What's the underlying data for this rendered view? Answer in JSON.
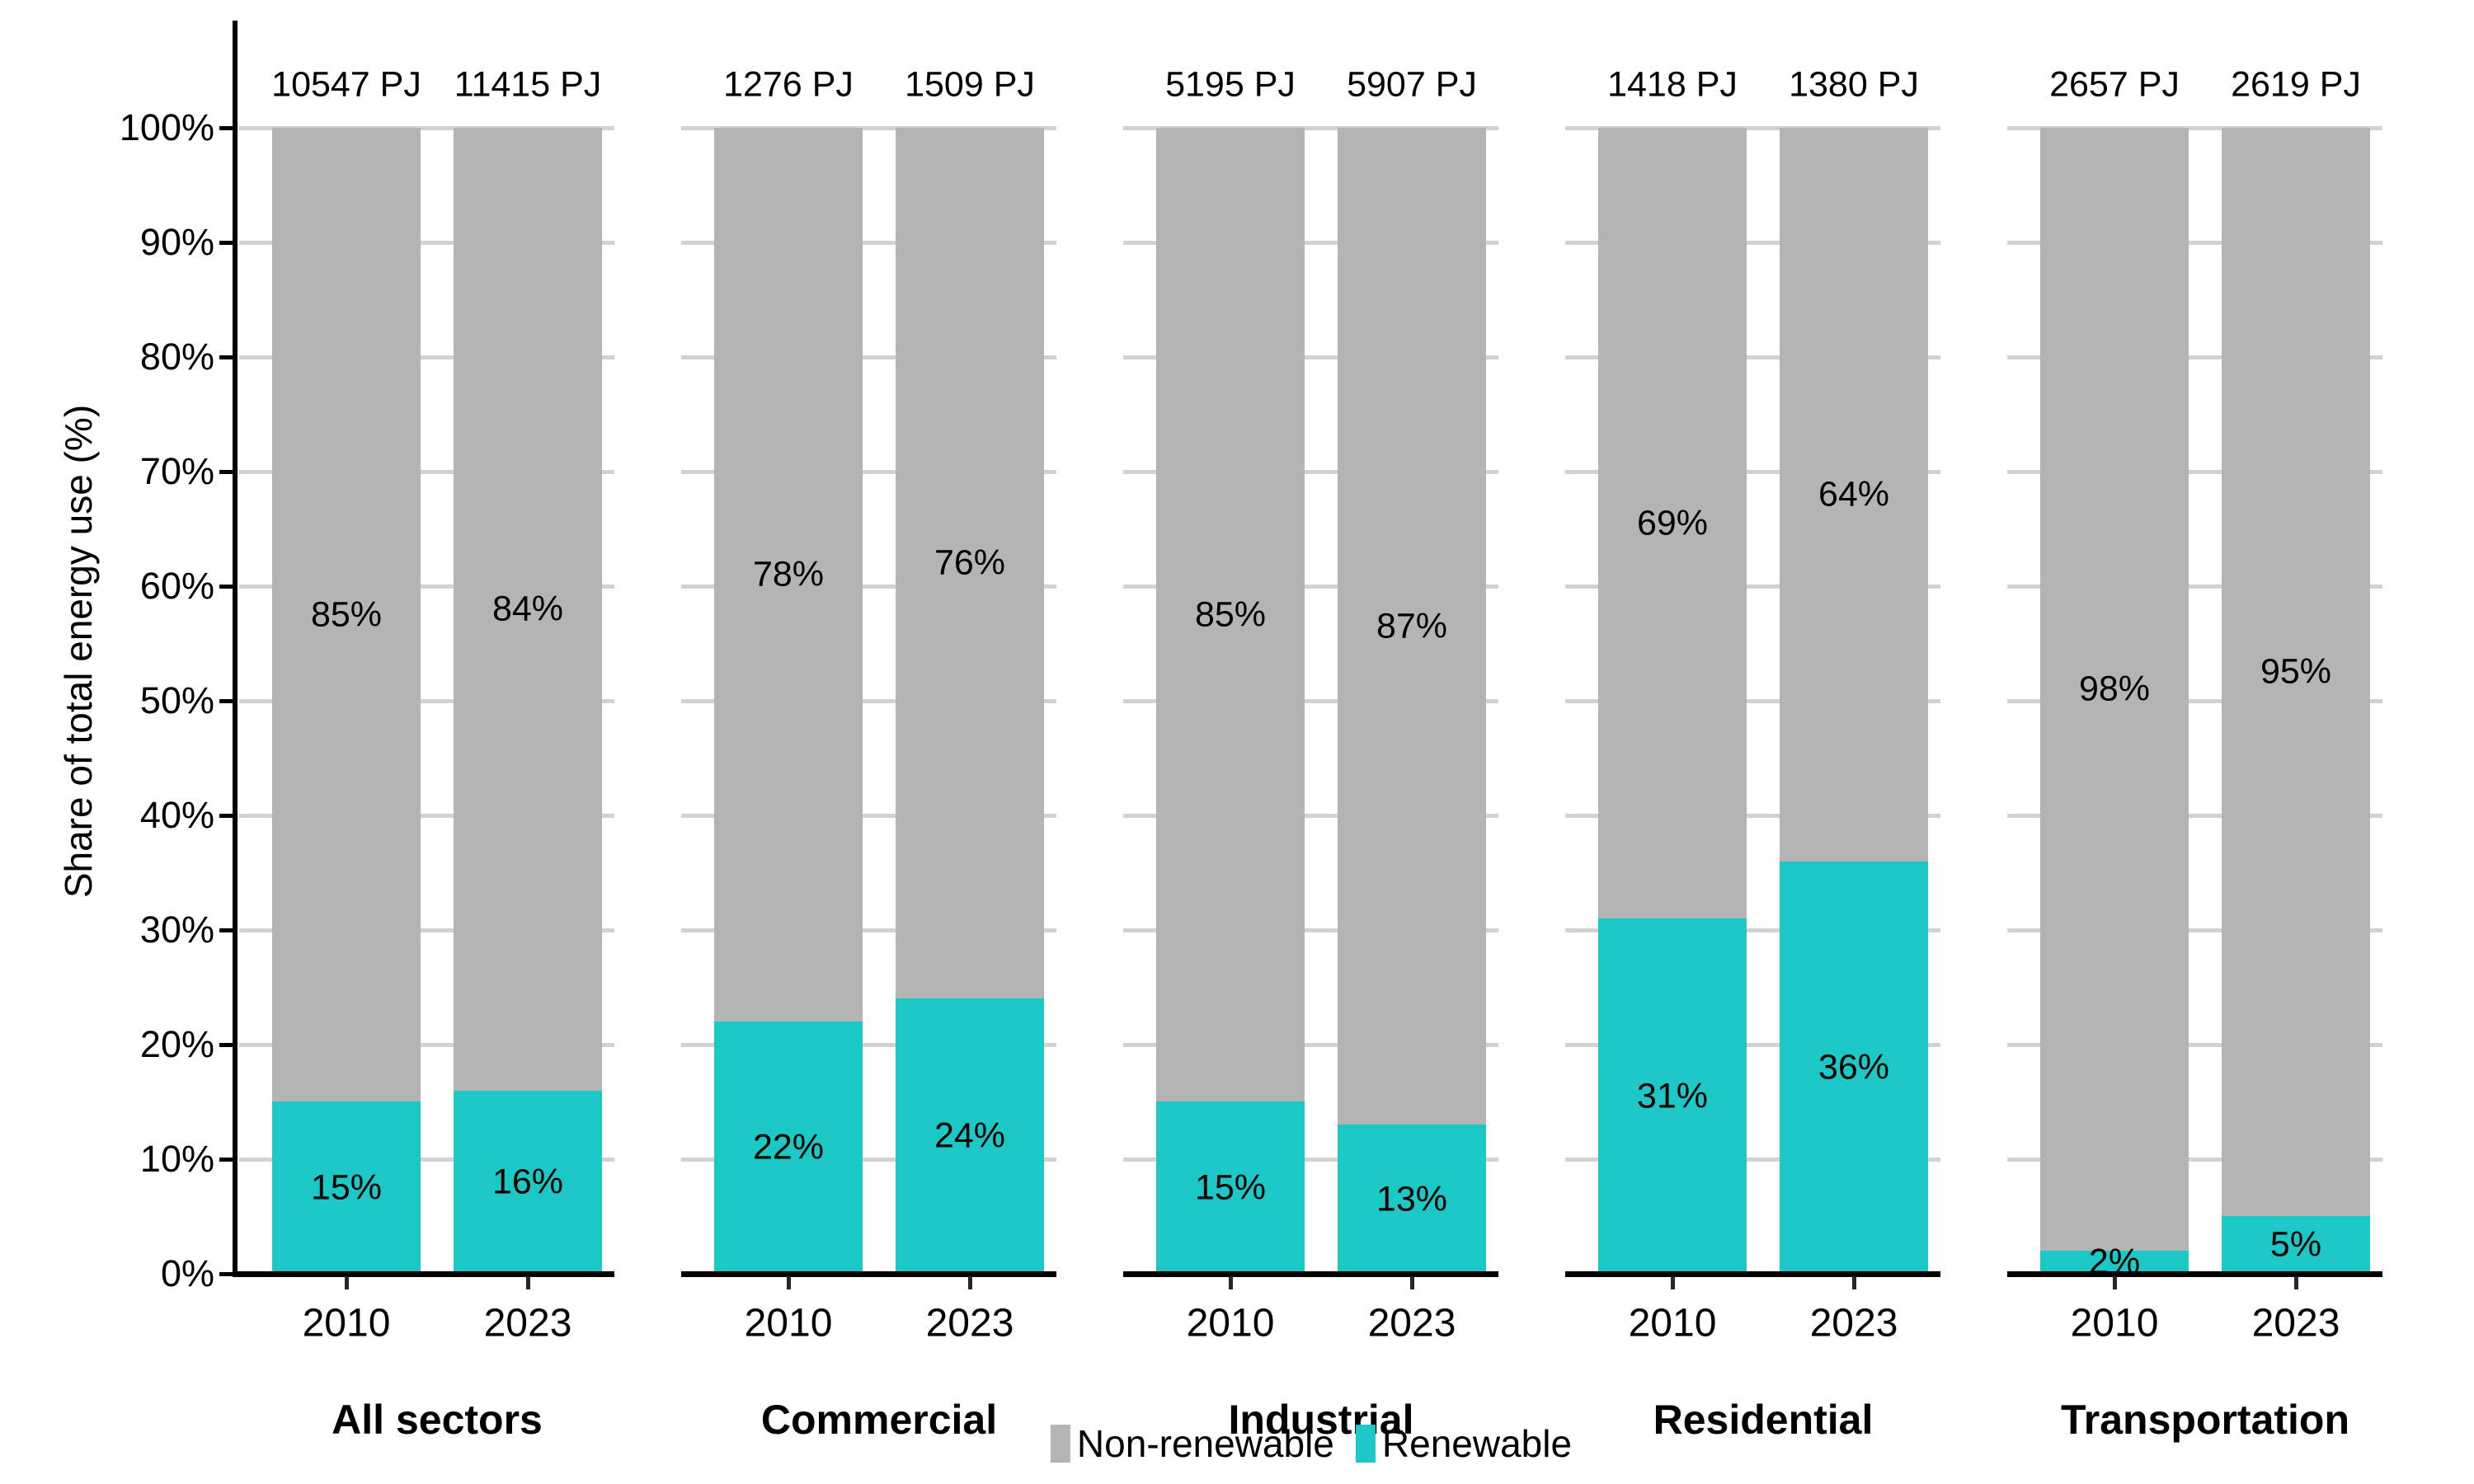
{
  "chart_data": {
    "type": "bar",
    "stacked": true,
    "ylabel": "Share of total energy use (%)",
    "ylim": [
      0,
      100
    ],
    "yticks": [
      "0%",
      "10%",
      "20%",
      "30%",
      "40%",
      "50%",
      "60%",
      "70%",
      "80%",
      "90%",
      "100%"
    ],
    "grid": true,
    "legend_position": "bottom",
    "legend": [
      {
        "name": "nonrenewable",
        "label": "Non-renewable",
        "color": "#B4B4B4"
      },
      {
        "name": "renewable",
        "label": "Renewable",
        "color": "#1BC8C6"
      }
    ],
    "colors": {
      "nonrenewable": "#B4B4B4",
      "renewable": "#1BC8C6",
      "gridline": "#D2D2D2",
      "axis": "#000000",
      "text": "#000000"
    },
    "facets": [
      {
        "label": "All sectors",
        "bars": [
          {
            "year": "2010",
            "total_label": "10547 PJ",
            "renewable_pct": 15,
            "nonrenewable_pct": 85,
            "renewable_label": "15%",
            "nonrenewable_label": "85%"
          },
          {
            "year": "2023",
            "total_label": "11415 PJ",
            "renewable_pct": 16,
            "nonrenewable_pct": 84,
            "renewable_label": "16%",
            "nonrenewable_label": "84%"
          }
        ]
      },
      {
        "label": "Commercial",
        "bars": [
          {
            "year": "2010",
            "total_label": "1276 PJ",
            "renewable_pct": 22,
            "nonrenewable_pct": 78,
            "renewable_label": "22%",
            "nonrenewable_label": "78%"
          },
          {
            "year": "2023",
            "total_label": "1509 PJ",
            "renewable_pct": 24,
            "nonrenewable_pct": 76,
            "renewable_label": "24%",
            "nonrenewable_label": "76%"
          }
        ]
      },
      {
        "label": "Industrial",
        "bars": [
          {
            "year": "2010",
            "total_label": "5195 PJ",
            "renewable_pct": 15,
            "nonrenewable_pct": 85,
            "renewable_label": "15%",
            "nonrenewable_label": "85%"
          },
          {
            "year": "2023",
            "total_label": "5907 PJ",
            "renewable_pct": 13,
            "nonrenewable_pct": 87,
            "renewable_label": "13%",
            "nonrenewable_label": "87%"
          }
        ]
      },
      {
        "label": "Residential",
        "bars": [
          {
            "year": "2010",
            "total_label": "1418 PJ",
            "renewable_pct": 31,
            "nonrenewable_pct": 69,
            "renewable_label": "31%",
            "nonrenewable_label": "69%"
          },
          {
            "year": "2023",
            "total_label": "1380 PJ",
            "renewable_pct": 36,
            "nonrenewable_pct": 64,
            "renewable_label": "36%",
            "nonrenewable_label": "64%"
          }
        ]
      },
      {
        "label": "Transportation",
        "bars": [
          {
            "year": "2010",
            "total_label": "2657 PJ",
            "renewable_pct": 2,
            "nonrenewable_pct": 98,
            "renewable_label": "2%",
            "nonrenewable_label": "98%"
          },
          {
            "year": "2023",
            "total_label": "2619 PJ",
            "renewable_pct": 5,
            "nonrenewable_pct": 95,
            "renewable_label": "5%",
            "nonrenewable_label": "95%"
          }
        ]
      }
    ]
  }
}
